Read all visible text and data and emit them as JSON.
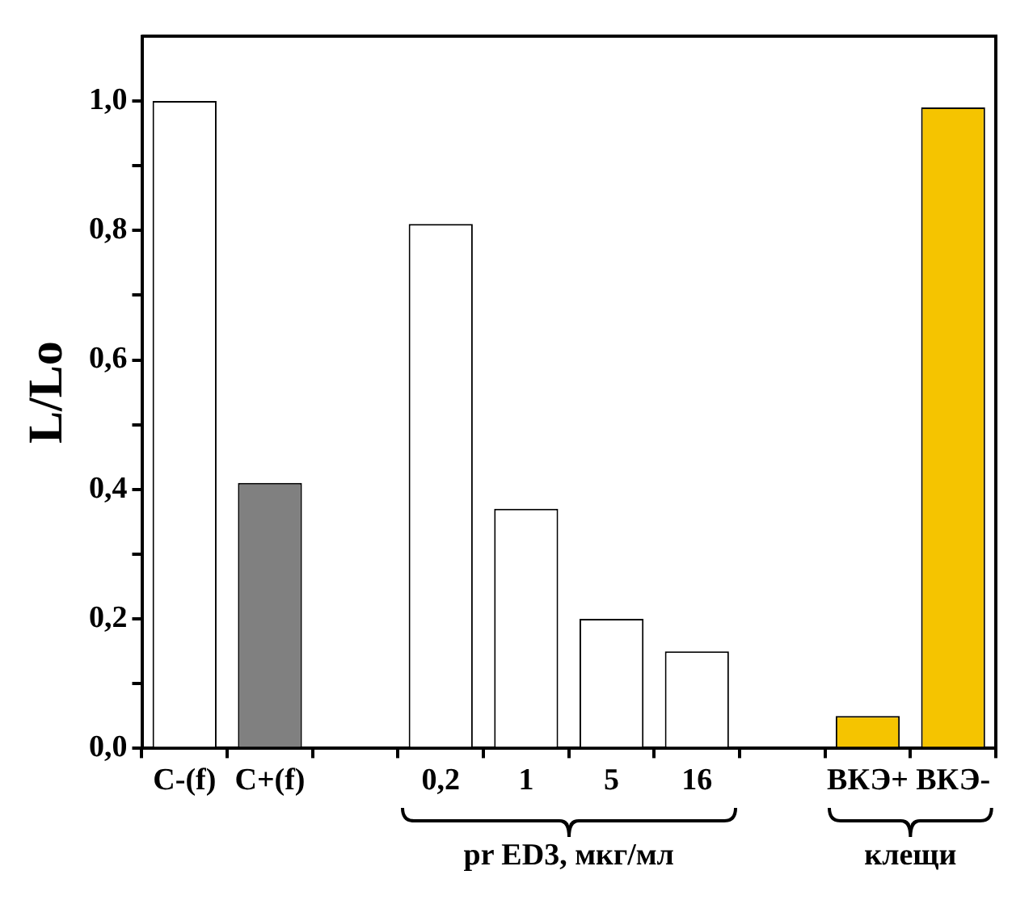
{
  "chart_data": {
    "type": "bar",
    "ylabel": "L/Lo",
    "categories": [
      "C-(f)",
      "C+(f)",
      null,
      "0,2",
      "1",
      "5",
      "16",
      null,
      "ВКЭ+",
      "ВКЭ-"
    ],
    "values": [
      1.0,
      0.41,
      null,
      0.81,
      0.37,
      0.2,
      0.15,
      null,
      0.05,
      0.99
    ],
    "colors": [
      "#ffffff",
      "#808080",
      "#ffffff",
      "#ffffff",
      "#ffffff",
      "#ffffff",
      "#ffffff",
      "#ffffff",
      "#f5c400",
      "#f5c400"
    ],
    "ylim": [
      0,
      1.1
    ],
    "yticks": [
      {
        "value": 0,
        "label": "0,0"
      },
      {
        "value": 0.1,
        "label": null
      },
      {
        "value": 0.2,
        "label": "0,2"
      },
      {
        "value": 0.3,
        "label": null
      },
      {
        "value": 0.4,
        "label": "0,4"
      },
      {
        "value": 0.5,
        "label": null
      },
      {
        "value": 0.6,
        "label": "0,6"
      },
      {
        "value": 0.7,
        "label": null
      },
      {
        "value": 0.8,
        "label": "0,8"
      },
      {
        "value": 0.9,
        "label": null
      },
      {
        "value": 1,
        "label": "1,0"
      }
    ],
    "annotations": [
      "pr ED3, мкг/мл",
      "клещи"
    ]
  }
}
